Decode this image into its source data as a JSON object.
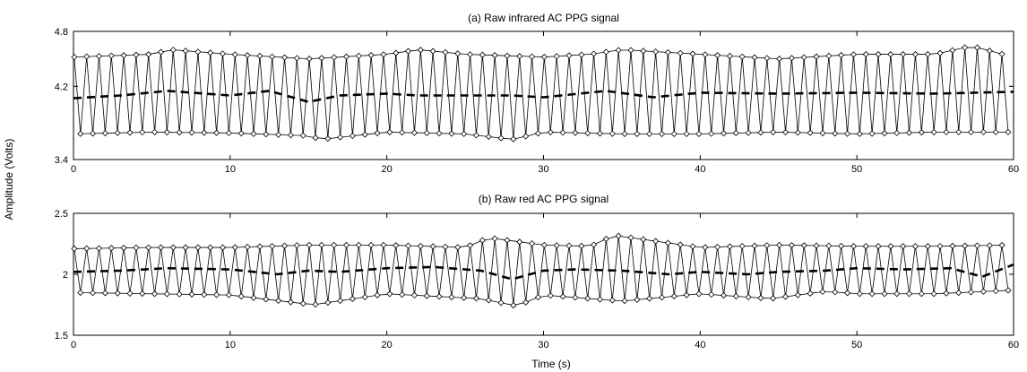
{
  "figure": {
    "ylabel": "Amplitude (Volts)",
    "xlabel": "Time (s)"
  },
  "chart_data": [
    {
      "type": "line",
      "title": "(a) Raw infrared AC PPG signal",
      "xlabel": "Time (s)",
      "ylabel": "Amplitude (Volts)",
      "xlim": [
        0,
        60
      ],
      "ylim": [
        3.4,
        4.8
      ],
      "xticks": [
        0,
        10,
        20,
        30,
        40,
        50,
        60
      ],
      "yticks": [
        3.4,
        4.2,
        4.8
      ],
      "grid": false,
      "signal": {
        "beats": 76,
        "peak_mean": 4.53,
        "trough_mean": 3.68,
        "mean_level": 4.1
      },
      "series": [
        {
          "name": "",
          "style": "thin-solid",
          "description": "raw signal",
          "x": [],
          "y": []
        },
        {
          "name": "",
          "style": "diamond-markers",
          "description": "upper envelope (peaks)",
          "x": [
            0.1,
            5.0,
            6.2,
            10.0,
            15.0,
            20.0,
            22.0,
            25.0,
            30.0,
            33.0,
            35.0,
            40.0,
            45.0,
            50.0,
            55.0,
            57.3,
            60.0
          ],
          "y": [
            4.52,
            4.55,
            4.6,
            4.55,
            4.5,
            4.55,
            4.6,
            4.55,
            4.52,
            4.55,
            4.6,
            4.55,
            4.5,
            4.55,
            4.55,
            4.64,
            4.52
          ]
        },
        {
          "name": "",
          "style": "diamond-markers",
          "description": "lower envelope (troughs)",
          "x": [
            0.0,
            5.0,
            10.0,
            15.0,
            15.8,
            20.0,
            25.0,
            28.0,
            30.0,
            35.0,
            40.0,
            45.0,
            50.0,
            55.0,
            60.0
          ],
          "y": [
            3.68,
            3.7,
            3.69,
            3.66,
            3.62,
            3.7,
            3.68,
            3.62,
            3.7,
            3.68,
            3.68,
            3.7,
            3.68,
            3.7,
            3.7
          ]
        },
        {
          "name": "",
          "style": "thick-dashed",
          "description": "baseline",
          "x": [
            0,
            3,
            6,
            10,
            12.5,
            15,
            17,
            20,
            22,
            25,
            28,
            30,
            34,
            37,
            40,
            45,
            50,
            55,
            60
          ],
          "y": [
            4.07,
            4.1,
            4.15,
            4.1,
            4.15,
            4.03,
            4.1,
            4.12,
            4.1,
            4.1,
            4.1,
            4.08,
            4.15,
            4.08,
            4.13,
            4.12,
            4.13,
            4.12,
            4.14
          ]
        }
      ]
    },
    {
      "type": "line",
      "title": "(b) Raw red AC PPG signal",
      "xlabel": "Time (s)",
      "ylabel": "Amplitude (Volts)",
      "xlim": [
        0,
        60
      ],
      "ylim": [
        1.5,
        2.5
      ],
      "xticks": [
        0,
        10,
        20,
        30,
        40,
        50,
        60
      ],
      "yticks": [
        1.5,
        2,
        2.5
      ],
      "grid": false,
      "signal": {
        "beats": 76,
        "peak_mean": 2.23,
        "trough_mean": 1.84,
        "mean_level": 2.03
      },
      "series": [
        {
          "name": "",
          "style": "thin-solid",
          "description": "raw signal",
          "x": [],
          "y": []
        },
        {
          "name": "",
          "style": "diamond-markers",
          "description": "upper envelope (peaks)",
          "x": [
            0.0,
            5.0,
            10.0,
            15.0,
            20.0,
            25.0,
            26.5,
            30.0,
            33.0,
            34.5,
            40.0,
            45.0,
            50.0,
            55.0,
            60.0
          ],
          "y": [
            2.21,
            2.22,
            2.22,
            2.24,
            2.24,
            2.22,
            2.3,
            2.24,
            2.23,
            2.32,
            2.22,
            2.24,
            2.23,
            2.23,
            2.24
          ]
        },
        {
          "name": "",
          "style": "diamond-markers",
          "description": "lower envelope (troughs)",
          "x": [
            0.0,
            5.0,
            10.0,
            15.3,
            20.0,
            26.0,
            28.3,
            30.0,
            35.0,
            40.0,
            44.5,
            48.0,
            50.0,
            55.0,
            60.0
          ],
          "y": [
            1.85,
            1.84,
            1.83,
            1.75,
            1.84,
            1.8,
            1.74,
            1.83,
            1.78,
            1.84,
            1.8,
            1.86,
            1.84,
            1.84,
            1.87
          ]
        },
        {
          "name": "",
          "style": "thick-dashed",
          "description": "baseline",
          "x": [
            0,
            3,
            6,
            10,
            13,
            15,
            17,
            20,
            23,
            26,
            28,
            30,
            32,
            35,
            38,
            40,
            43,
            45,
            48,
            50,
            53,
            56,
            58,
            60
          ],
          "y": [
            2.02,
            2.03,
            2.05,
            2.04,
            2.0,
            2.03,
            2.02,
            2.05,
            2.06,
            2.03,
            1.96,
            2.03,
            2.04,
            2.03,
            2.0,
            2.02,
            2.0,
            2.02,
            2.03,
            2.05,
            2.04,
            2.05,
            1.98,
            2.08
          ]
        }
      ]
    }
  ]
}
